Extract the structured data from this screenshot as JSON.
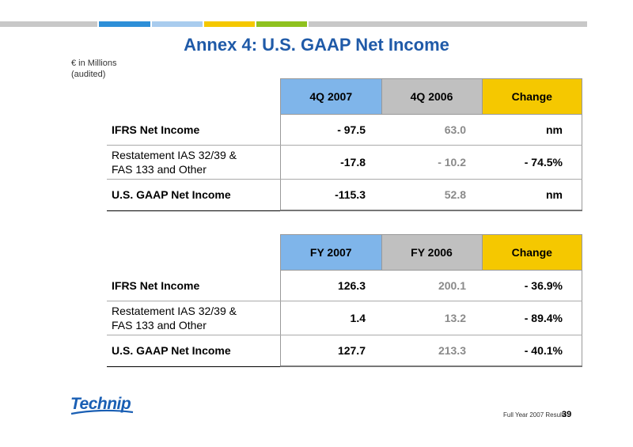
{
  "title": "Annex 4: U.S. GAAP Net Income",
  "units_line1": "€ in Millions",
  "units_line2": "(audited)",
  "colors": {
    "title": "#1f5aa8",
    "bar": [
      "#c8c8c8",
      "#2e8fd8",
      "#a9ccee",
      "#f5c800",
      "#8fc21f",
      "#c8c8c8"
    ],
    "col1_header": "#7fb5ea",
    "col2_header": "#c0c0c0",
    "change_header": "#f5c800",
    "logo": "#1a5fb4"
  },
  "table_quarter": {
    "headers": [
      "4Q 2007",
      "4Q 2006",
      "Change"
    ],
    "rows": [
      {
        "label": "IFRS Net Income",
        "v1": "- 97.5",
        "v2": "63.0",
        "chg": "nm"
      },
      {
        "label_line1": "Restatement IAS 32/39 &",
        "label_line2": "FAS 133 and Other",
        "v1": "-17.8",
        "v2": "- 10.2",
        "chg": "- 74.5%"
      },
      {
        "label": "U.S. GAAP Net Income",
        "v1": "-115.3",
        "v2": "52.8",
        "chg": "nm"
      }
    ]
  },
  "table_year": {
    "headers": [
      "FY 2007",
      "FY 2006",
      "Change"
    ],
    "rows": [
      {
        "label": "IFRS Net Income",
        "v1": "126.3",
        "v2": "200.1",
        "chg": "- 36.9%"
      },
      {
        "label_line1": "Restatement IAS 32/39 &",
        "label_line2": "FAS 133 and Other",
        "v1": "1.4",
        "v2": "13.2",
        "chg": "- 89.4%"
      },
      {
        "label": "U.S. GAAP Net Income",
        "v1": "127.7",
        "v2": "213.3",
        "chg": "- 40.1%"
      }
    ]
  },
  "logo_text": "Technip",
  "footer_text": "Full Year 2007 Results",
  "page_number": "39"
}
